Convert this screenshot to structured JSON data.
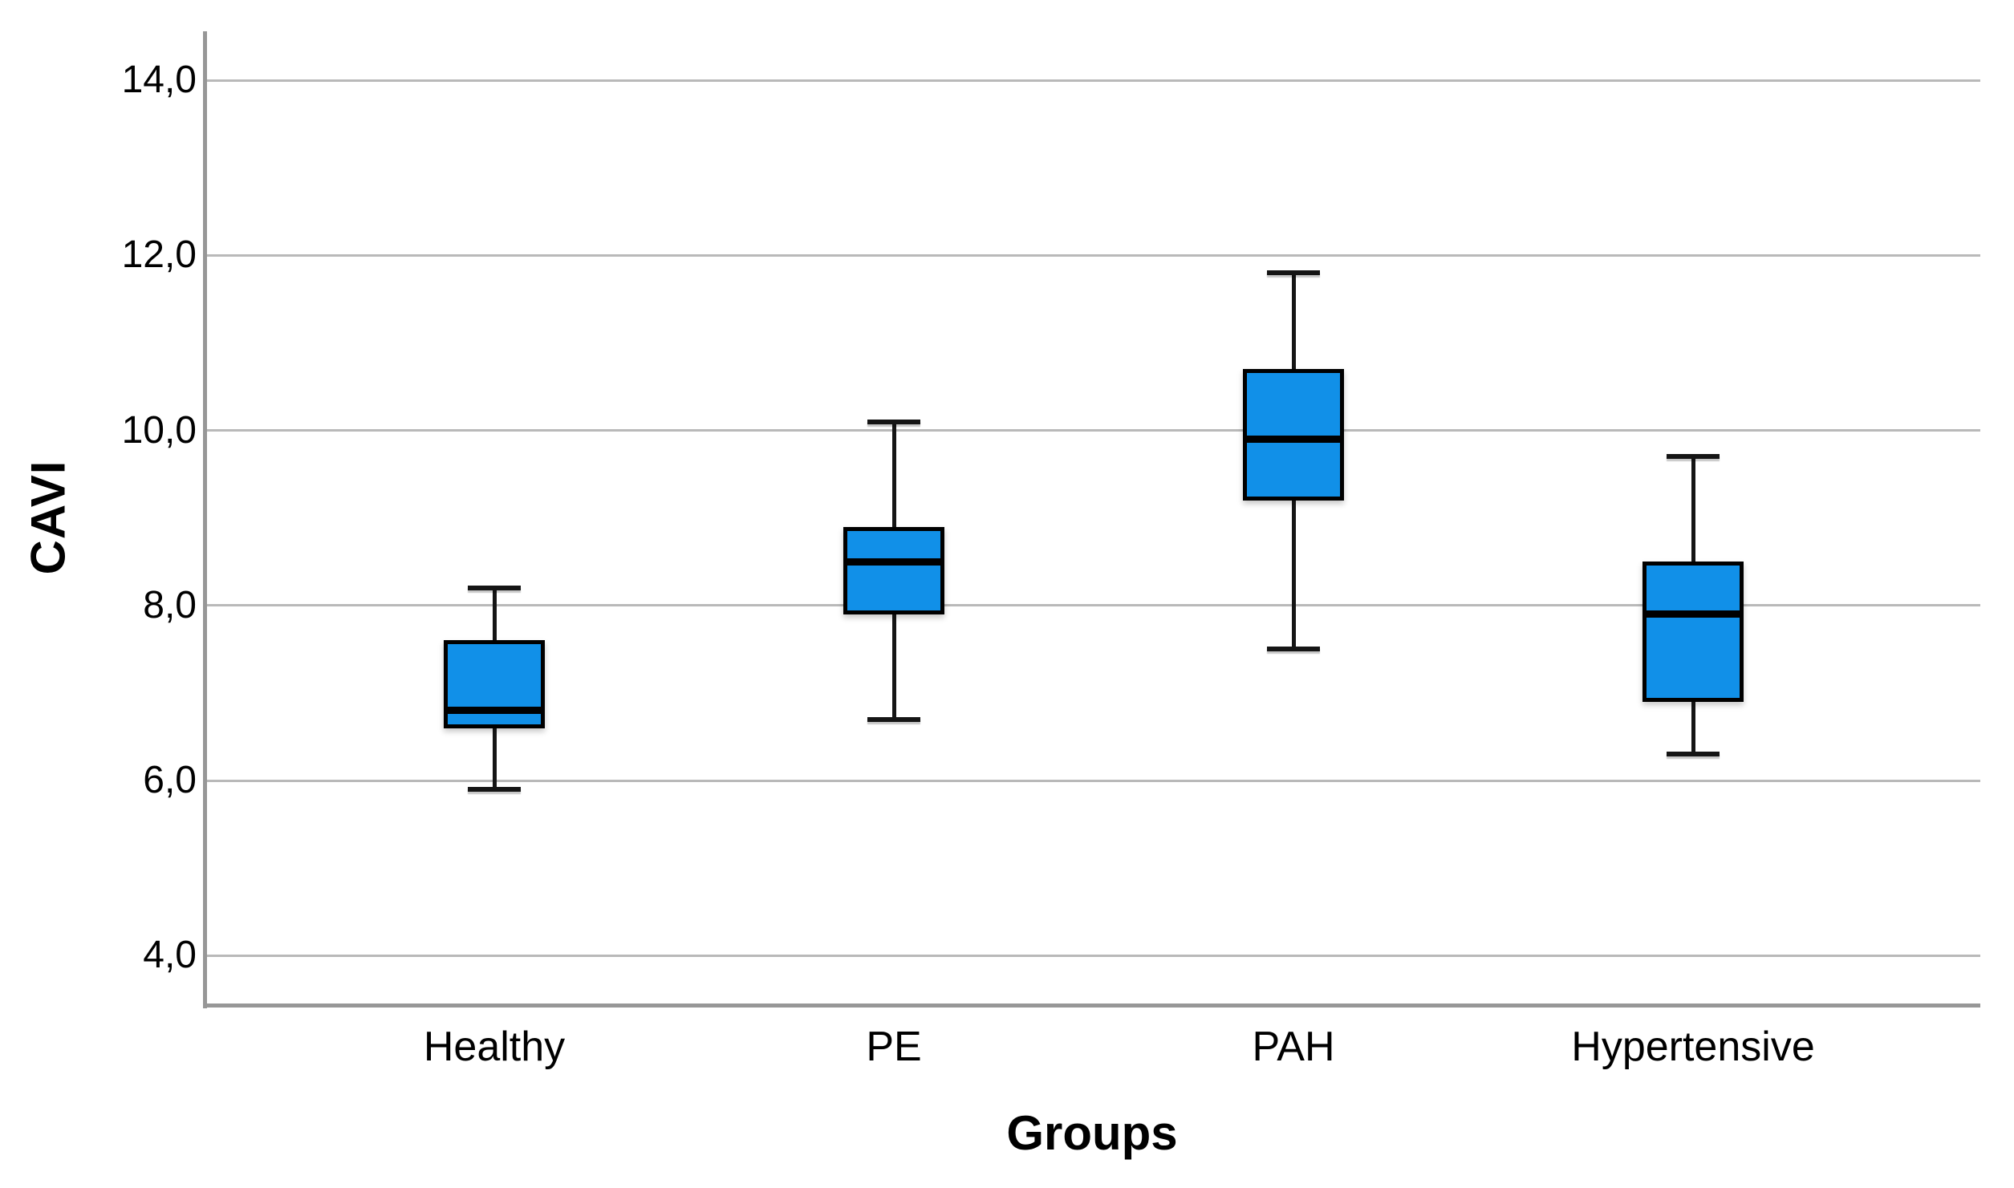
{
  "chart": {
    "y_axis_title": "CAVI",
    "x_axis_title": "Groups"
  },
  "chart_data": {
    "type": "boxplot",
    "title": "",
    "xlabel": "Groups",
    "ylabel": "CAVI",
    "ylim": [
      3.4,
      14.6
    ],
    "grid": "horizontal",
    "legend": "none",
    "decimal_separator": ",",
    "box_fill_color": "#1190E8",
    "box_edge_color": "#000000",
    "gridline_color": "#b9b9b9",
    "axis_line_color": "#979797",
    "y_ticks": [
      {
        "label": "14,0",
        "value": 14.0
      },
      {
        "label": "12,0",
        "value": 12.0
      },
      {
        "label": "10,0",
        "value": 10.0
      },
      {
        "label": "8,0",
        "value": 8.0
      },
      {
        "label": "6,0",
        "value": 6.0
      },
      {
        "label": "4,0",
        "value": 4.0
      }
    ],
    "categories": [
      "Healthy",
      "PE",
      "PAH",
      "Hypertensive"
    ],
    "series": [
      {
        "category": "Healthy",
        "whisker_low": 5.9,
        "q1": 6.6,
        "median": 6.8,
        "q3": 7.6,
        "whisker_high": 8.2
      },
      {
        "category": "PE",
        "whisker_low": 6.7,
        "q1": 7.9,
        "median": 8.5,
        "q3": 8.9,
        "whisker_high": 10.1
      },
      {
        "category": "PAH",
        "whisker_low": 7.5,
        "q1": 9.2,
        "median": 9.9,
        "q3": 10.7,
        "whisker_high": 11.8
      },
      {
        "category": "Hypertensive",
        "whisker_low": 6.3,
        "q1": 6.9,
        "median": 7.9,
        "q3": 8.5,
        "whisker_high": 9.7
      }
    ]
  }
}
